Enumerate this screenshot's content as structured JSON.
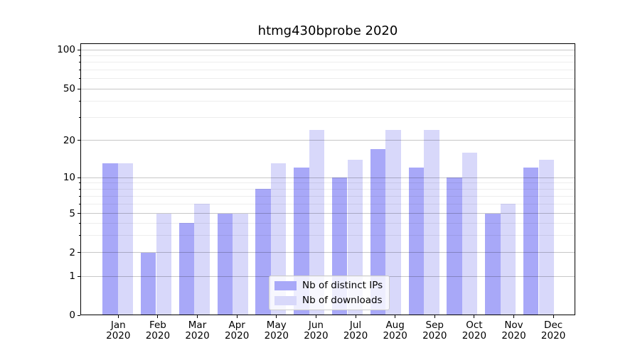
{
  "title": "htmg430bprobe 2020",
  "chart_data": {
    "type": "bar",
    "title": "htmg430bprobe 2020",
    "categories": [
      "Jan",
      "Feb",
      "Mar",
      "Apr",
      "May",
      "Jun",
      "Jul",
      "Aug",
      "Sep",
      "Oct",
      "Nov",
      "Dec"
    ],
    "year_label": "2020",
    "series": [
      {
        "name": "Nb of distinct IPs",
        "color": "#a8a8f8",
        "values": [
          13,
          2,
          4,
          5,
          8,
          12,
          10,
          17,
          12,
          10,
          5,
          12
        ]
      },
      {
        "name": "Nb of downloads",
        "color": "#d8d8fa",
        "values": [
          13,
          5,
          6,
          5,
          13,
          24,
          14,
          24,
          24,
          16,
          6,
          14
        ]
      }
    ],
    "xlabel": "",
    "ylabel": "",
    "yscale": "symlog",
    "ylim": [
      0,
      110
    ],
    "yticks_major": [
      0,
      1,
      2,
      5,
      10,
      20,
      50,
      100
    ],
    "yticks_minor": [
      3,
      4,
      6,
      7,
      8,
      9,
      30,
      40,
      60,
      70,
      80,
      90
    ],
    "grid": true,
    "legend_position": "lower center",
    "spine_color": "#000000",
    "major_grid_color": "#c6c6c6",
    "minor_grid_color": "#ededed"
  },
  "legend": {
    "items": [
      "Nb of distinct IPs",
      "Nb of downloads"
    ]
  }
}
